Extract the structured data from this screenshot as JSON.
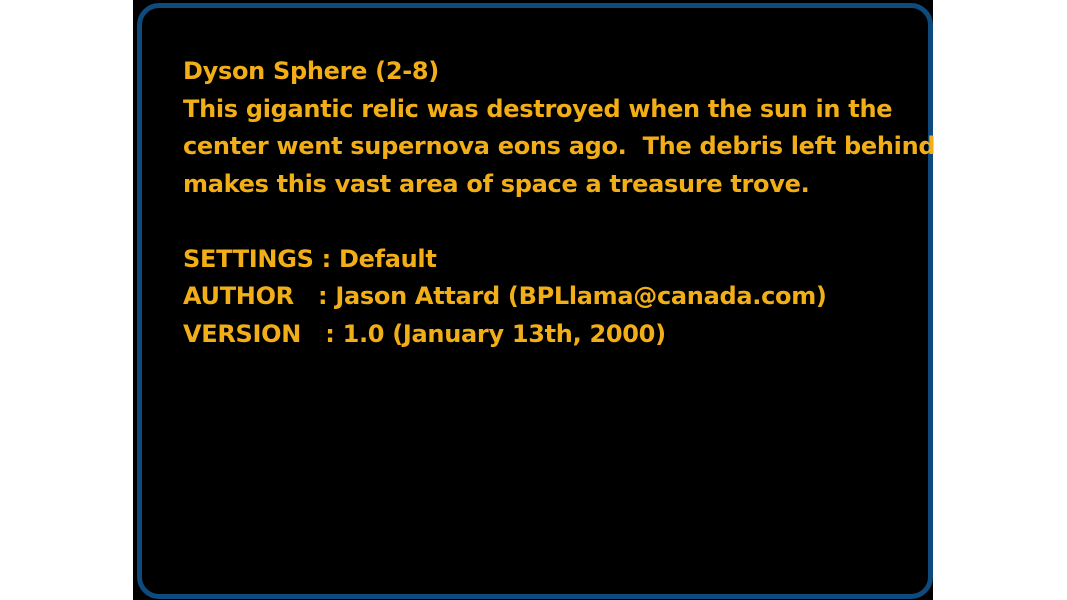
{
  "map": {
    "title": "Dyson Sphere (2-8)",
    "description_lines": [
      "This gigantic relic was destroyed when the sun in the",
      "center went supernova eons ago.  The debris left behind",
      "makes this vast area of space a treasure trove."
    ]
  },
  "info": {
    "settings": "SETTINGS : Default",
    "author": "AUTHOR   : Jason Attard (BPLlama@canada.com)",
    "version": "VERSION   : 1.0 (January 13th, 2000)"
  },
  "colors": {
    "background": "#000000",
    "text": "#f2ae17",
    "frame": "#0f4a7c"
  }
}
